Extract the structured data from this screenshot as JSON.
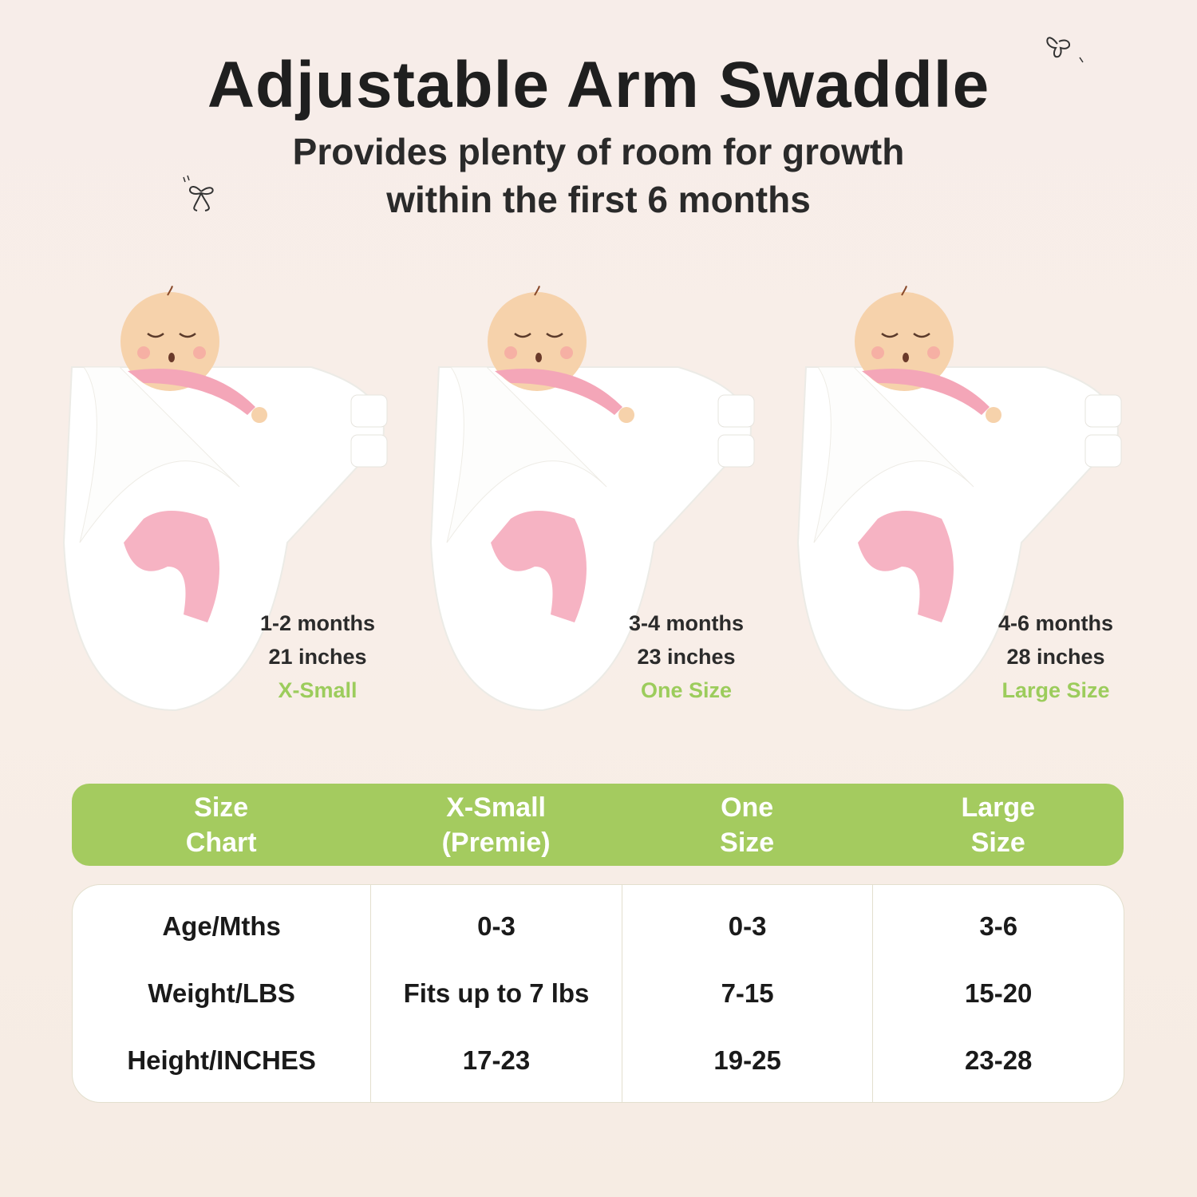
{
  "title": "Adjustable Arm Swaddle",
  "subtitle_line1": "Provides plenty of room for growth",
  "subtitle_line2": "within the first 6 months",
  "colors": {
    "accent_green": "#a4cb5f",
    "size_label_green": "#9ccc5c",
    "text": "#1f1f1f",
    "baby_pink": "#f4a6b8"
  },
  "icons": [
    "butterfly-icon",
    "bow-icon"
  ],
  "panels": [
    {
      "age": "1-2 months",
      "length": "21 inches",
      "size": "X-Small"
    },
    {
      "age": "3-4 months",
      "length": "23 inches",
      "size": "One Size"
    },
    {
      "age": "4-6 months",
      "length": "28 inches",
      "size": "Large Size"
    }
  ],
  "table": {
    "headers": [
      "Size\nChart",
      "X-Small\n(Premie)",
      "One\nSize",
      "Large\nSize"
    ],
    "row_labels": [
      "Age/Mths",
      "Weight/LBS",
      "Height/INCHES"
    ],
    "columns": [
      [
        "0-3",
        "Fits up to 7 lbs",
        "17-23"
      ],
      [
        "0-3",
        "7-15",
        "19-25"
      ],
      [
        "3-6",
        "15-20",
        "23-28"
      ]
    ]
  }
}
